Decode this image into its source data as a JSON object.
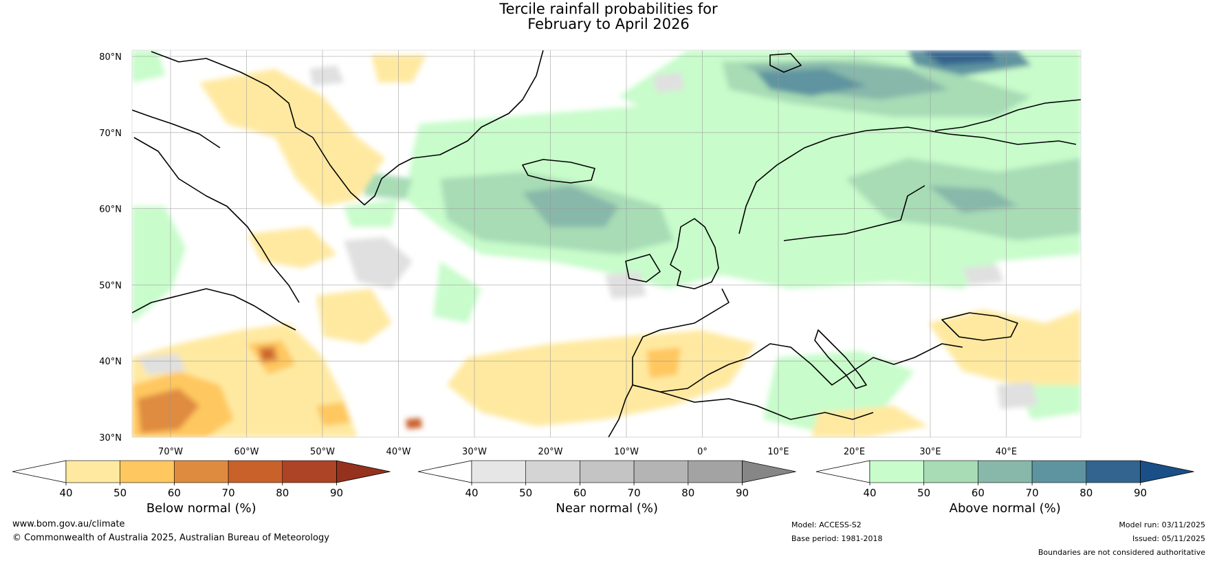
{
  "title": {
    "line1": "Tercile rainfall probabilities for",
    "line2": "February to April 2026"
  },
  "map": {
    "region": "North Atlantic and Europe",
    "lat_labels": [
      "80°N",
      "70°N",
      "60°N",
      "50°N",
      "40°N",
      "30°N"
    ],
    "lon_labels": [
      "70°W",
      "60°W",
      "50°W",
      "40°W",
      "30°W",
      "20°W",
      "10°W",
      "0°",
      "10°E",
      "20°E",
      "30°E",
      "40°E"
    ]
  },
  "colorbars": [
    {
      "id": "below",
      "title": "Below normal (%)",
      "ticks": [
        "40",
        "50",
        "60",
        "70",
        "80",
        "90"
      ],
      "colors": [
        "#ffffff",
        "#ffe9a0",
        "#ffc75f",
        "#df8b3f",
        "#c9612b",
        "#ad4425",
        "#96311e"
      ]
    },
    {
      "id": "near",
      "title": "Near normal (%)",
      "ticks": [
        "40",
        "50",
        "60",
        "70",
        "80",
        "90"
      ],
      "colors": [
        "#ffffff",
        "#e6e6e6",
        "#d4d4d4",
        "#c4c4c4",
        "#b4b4b4",
        "#a3a3a3",
        "#868686"
      ]
    },
    {
      "id": "above",
      "title": "Above normal (%)",
      "ticks": [
        "40",
        "50",
        "60",
        "70",
        "80",
        "90"
      ],
      "colors": [
        "#ffffff",
        "#c8fccb",
        "#a7dcb5",
        "#87b8aa",
        "#5e94a0",
        "#32648f",
        "#1a4e87"
      ]
    }
  ],
  "footer": {
    "website": "www.bom.gov.au/climate",
    "copyright": "© Commonwealth of Australia 2025, Australian Bureau of Meteorology",
    "model": "Model: ACCESS-S2",
    "base_period": "Base period: 1981-2018",
    "model_run": "Model run: 03/11/2025",
    "issued": "Issued: 05/11/2025",
    "disclaimer": "Boundaries are not considered authoritative"
  }
}
